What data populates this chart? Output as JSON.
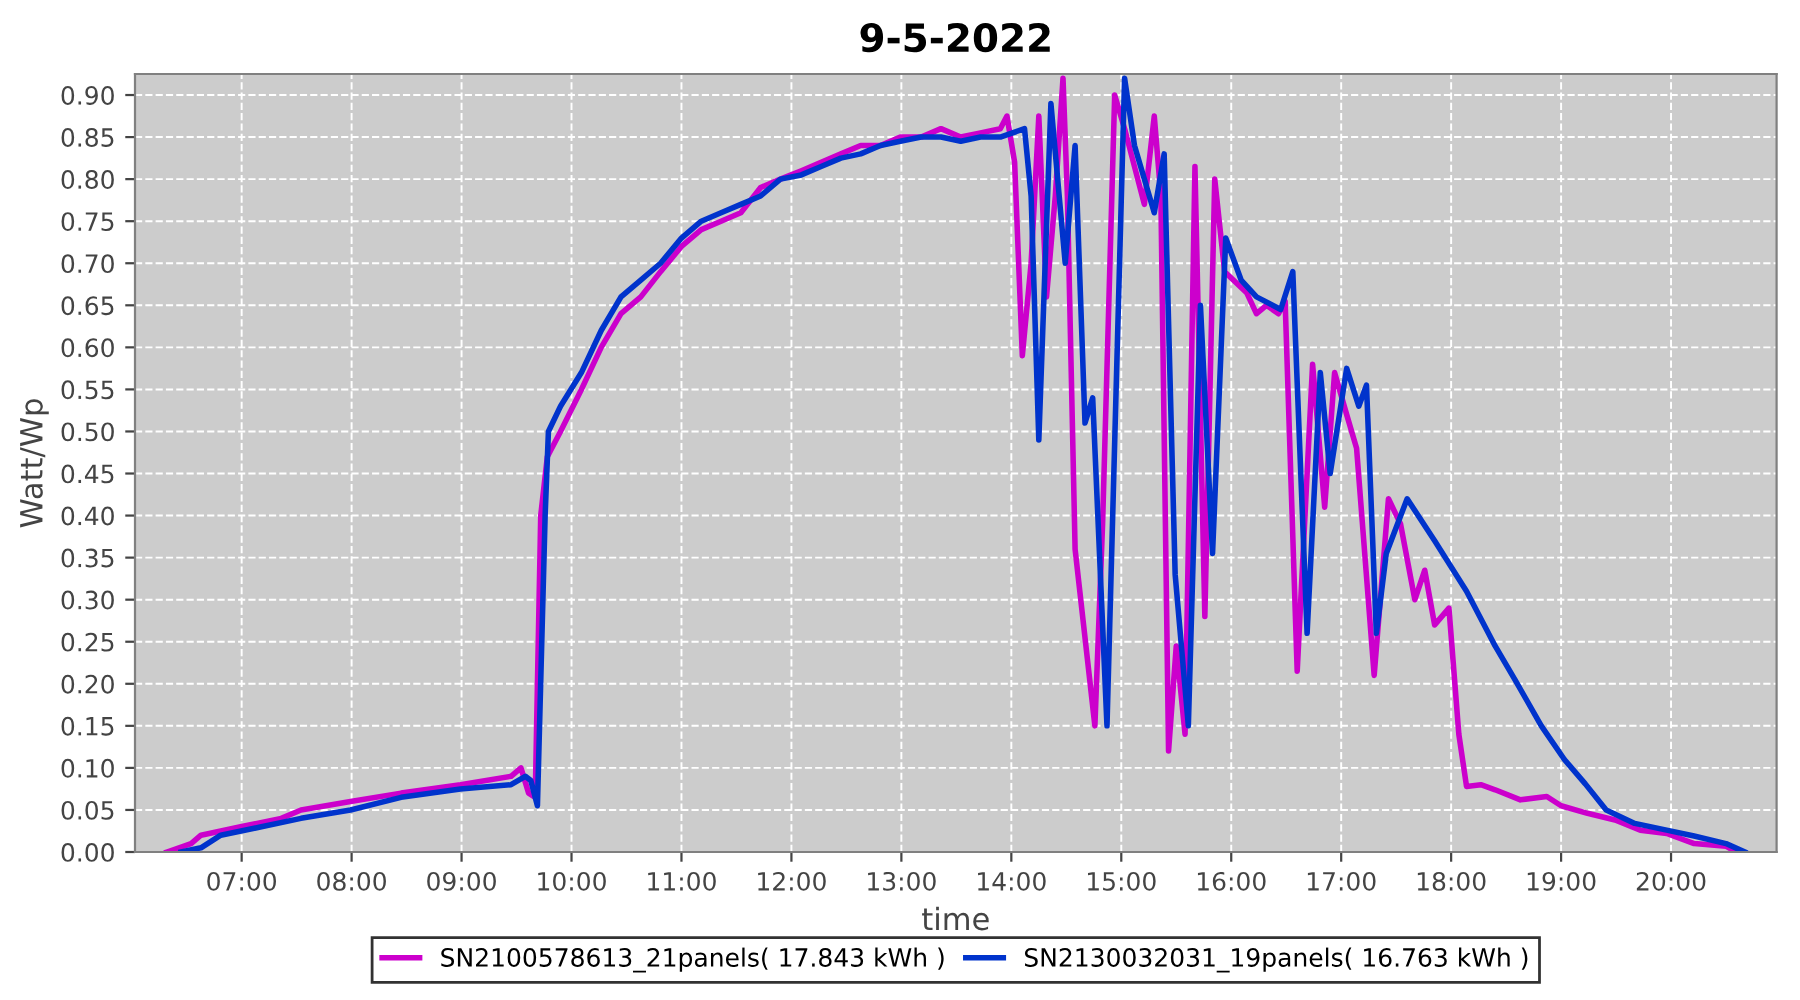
{
  "chart_data": {
    "type": "line",
    "title": "9-5-2022",
    "xlabel": "time",
    "ylabel": "Watt/Wp",
    "xlim": [
      6.03,
      20.96
    ],
    "ylim": [
      0,
      0.925
    ],
    "xticks": [
      {
        "value": 7,
        "label": "07:00"
      },
      {
        "value": 8,
        "label": "08:00"
      },
      {
        "value": 9,
        "label": "09:00"
      },
      {
        "value": 10,
        "label": "10:00"
      },
      {
        "value": 11,
        "label": "11:00"
      },
      {
        "value": 12,
        "label": "12:00"
      },
      {
        "value": 13,
        "label": "13:00"
      },
      {
        "value": 14,
        "label": "14:00"
      },
      {
        "value": 15,
        "label": "15:00"
      },
      {
        "value": 16,
        "label": "16:00"
      },
      {
        "value": 17,
        "label": "17:00"
      },
      {
        "value": 18,
        "label": "18:00"
      },
      {
        "value": 19,
        "label": "19:00"
      },
      {
        "value": 20,
        "label": "20:00"
      }
    ],
    "yticks": [
      {
        "value": 0,
        "label": "0.00"
      },
      {
        "value": 0.05,
        "label": "0.05"
      },
      {
        "value": 0.1,
        "label": "0.10"
      },
      {
        "value": 0.15,
        "label": "0.15"
      },
      {
        "value": 0.2,
        "label": "0.20"
      },
      {
        "value": 0.25,
        "label": "0.25"
      },
      {
        "value": 0.3,
        "label": "0.30"
      },
      {
        "value": 0.35,
        "label": "0.35"
      },
      {
        "value": 0.4,
        "label": "0.40"
      },
      {
        "value": 0.45,
        "label": "0.45"
      },
      {
        "value": 0.5,
        "label": "0.50"
      },
      {
        "value": 0.55,
        "label": "0.55"
      },
      {
        "value": 0.6,
        "label": "0.60"
      },
      {
        "value": 0.65,
        "label": "0.65"
      },
      {
        "value": 0.7,
        "label": "0.70"
      },
      {
        "value": 0.75,
        "label": "0.75"
      },
      {
        "value": 0.8,
        "label": "0.80"
      },
      {
        "value": 0.85,
        "label": "0.85"
      },
      {
        "value": 0.9,
        "label": "0.90"
      }
    ],
    "grid": true,
    "legend": "bottom",
    "line_style": "solid",
    "marker": "none",
    "series": [
      {
        "name": "SN2100578613_21panels( 17.843 kWh )",
        "color": "#cc00cc",
        "x": [
          6.32,
          6.54,
          6.63,
          6.81,
          6.99,
          7.36,
          7.54,
          7.99,
          8.45,
          8.99,
          9.45,
          9.54,
          9.61,
          9.67,
          9.72,
          9.78,
          9.9,
          10.09,
          10.27,
          10.45,
          10.63,
          10.81,
          11.0,
          11.18,
          11.36,
          11.54,
          11.72,
          11.9,
          12.09,
          12.27,
          12.45,
          12.63,
          12.81,
          12.99,
          13.18,
          13.36,
          13.54,
          13.72,
          13.9,
          13.96,
          14.03,
          14.1,
          14.18,
          14.25,
          14.32,
          14.4,
          14.47,
          14.51,
          14.58,
          14.76,
          14.83,
          14.94,
          15.03,
          15.21,
          15.3,
          15.36,
          15.43,
          15.5,
          15.58,
          15.67,
          15.76,
          15.85,
          15.94,
          16.14,
          16.23,
          16.32,
          16.43,
          16.49,
          16.6,
          16.74,
          16.85,
          16.94,
          17.05,
          17.14,
          17.3,
          17.43,
          17.54,
          17.67,
          17.76,
          17.85,
          17.98,
          18.07,
          18.14,
          18.27,
          18.4,
          18.63,
          18.87,
          19.0,
          19.24,
          19.49,
          19.72,
          19.96,
          20.21,
          20.5,
          20.59
        ],
        "values": [
          0.0,
          0.01,
          0.02,
          0.025,
          0.03,
          0.04,
          0.05,
          0.06,
          0.07,
          0.08,
          0.09,
          0.1,
          0.07,
          0.065,
          0.4,
          0.47,
          0.5,
          0.55,
          0.6,
          0.64,
          0.66,
          0.69,
          0.72,
          0.74,
          0.75,
          0.76,
          0.79,
          0.8,
          0.81,
          0.82,
          0.83,
          0.84,
          0.84,
          0.85,
          0.85,
          0.86,
          0.85,
          0.855,
          0.86,
          0.875,
          0.82,
          0.59,
          0.7,
          0.875,
          0.66,
          0.78,
          0.92,
          0.78,
          0.36,
          0.15,
          0.39,
          0.9,
          0.86,
          0.77,
          0.875,
          0.78,
          0.12,
          0.245,
          0.14,
          0.815,
          0.28,
          0.8,
          0.69,
          0.665,
          0.64,
          0.65,
          0.64,
          0.655,
          0.215,
          0.58,
          0.41,
          0.57,
          0.52,
          0.48,
          0.21,
          0.42,
          0.39,
          0.3,
          0.335,
          0.27,
          0.29,
          0.14,
          0.078,
          0.08,
          0.074,
          0.062,
          0.066,
          0.055,
          0.046,
          0.038,
          0.026,
          0.022,
          0.01,
          0.007,
          0.0
        ]
      },
      {
        "name": "SN2130032031_19panels( 16.763 kWh )",
        "color": "#0033cc",
        "x": [
          6.45,
          6.63,
          6.81,
          7.18,
          7.54,
          7.99,
          8.45,
          8.99,
          9.45,
          9.58,
          9.63,
          9.69,
          9.76,
          9.79,
          9.9,
          10.09,
          10.27,
          10.45,
          10.63,
          10.81,
          11.0,
          11.18,
          11.36,
          11.54,
          11.72,
          11.9,
          12.09,
          12.27,
          12.45,
          12.63,
          12.81,
          12.99,
          13.18,
          13.36,
          13.54,
          13.72,
          13.9,
          14.12,
          14.18,
          14.25,
          14.36,
          14.49,
          14.58,
          14.67,
          14.74,
          14.87,
          15.03,
          15.12,
          15.3,
          15.39,
          15.49,
          15.61,
          15.72,
          15.83,
          15.95,
          16.09,
          16.23,
          16.45,
          16.56,
          16.69,
          16.81,
          16.9,
          17.05,
          17.16,
          17.23,
          17.32,
          17.41,
          17.6,
          17.85,
          18.14,
          18.4,
          18.58,
          18.82,
          19.03,
          19.22,
          19.41,
          19.67,
          19.96,
          20.21,
          20.5,
          20.67
        ],
        "values": [
          0.0,
          0.005,
          0.02,
          0.03,
          0.04,
          0.05,
          0.065,
          0.075,
          0.08,
          0.09,
          0.085,
          0.055,
          0.4,
          0.5,
          0.53,
          0.57,
          0.62,
          0.66,
          0.68,
          0.7,
          0.73,
          0.75,
          0.76,
          0.77,
          0.78,
          0.8,
          0.805,
          0.815,
          0.825,
          0.83,
          0.84,
          0.845,
          0.85,
          0.85,
          0.845,
          0.85,
          0.85,
          0.86,
          0.78,
          0.49,
          0.89,
          0.7,
          0.84,
          0.51,
          0.54,
          0.15,
          0.92,
          0.84,
          0.76,
          0.83,
          0.33,
          0.15,
          0.65,
          0.355,
          0.73,
          0.68,
          0.66,
          0.645,
          0.69,
          0.26,
          0.57,
          0.45,
          0.575,
          0.53,
          0.555,
          0.26,
          0.355,
          0.42,
          0.37,
          0.31,
          0.245,
          0.205,
          0.15,
          0.11,
          0.081,
          0.05,
          0.034,
          0.026,
          0.019,
          0.01,
          0.0
        ]
      }
    ]
  }
}
